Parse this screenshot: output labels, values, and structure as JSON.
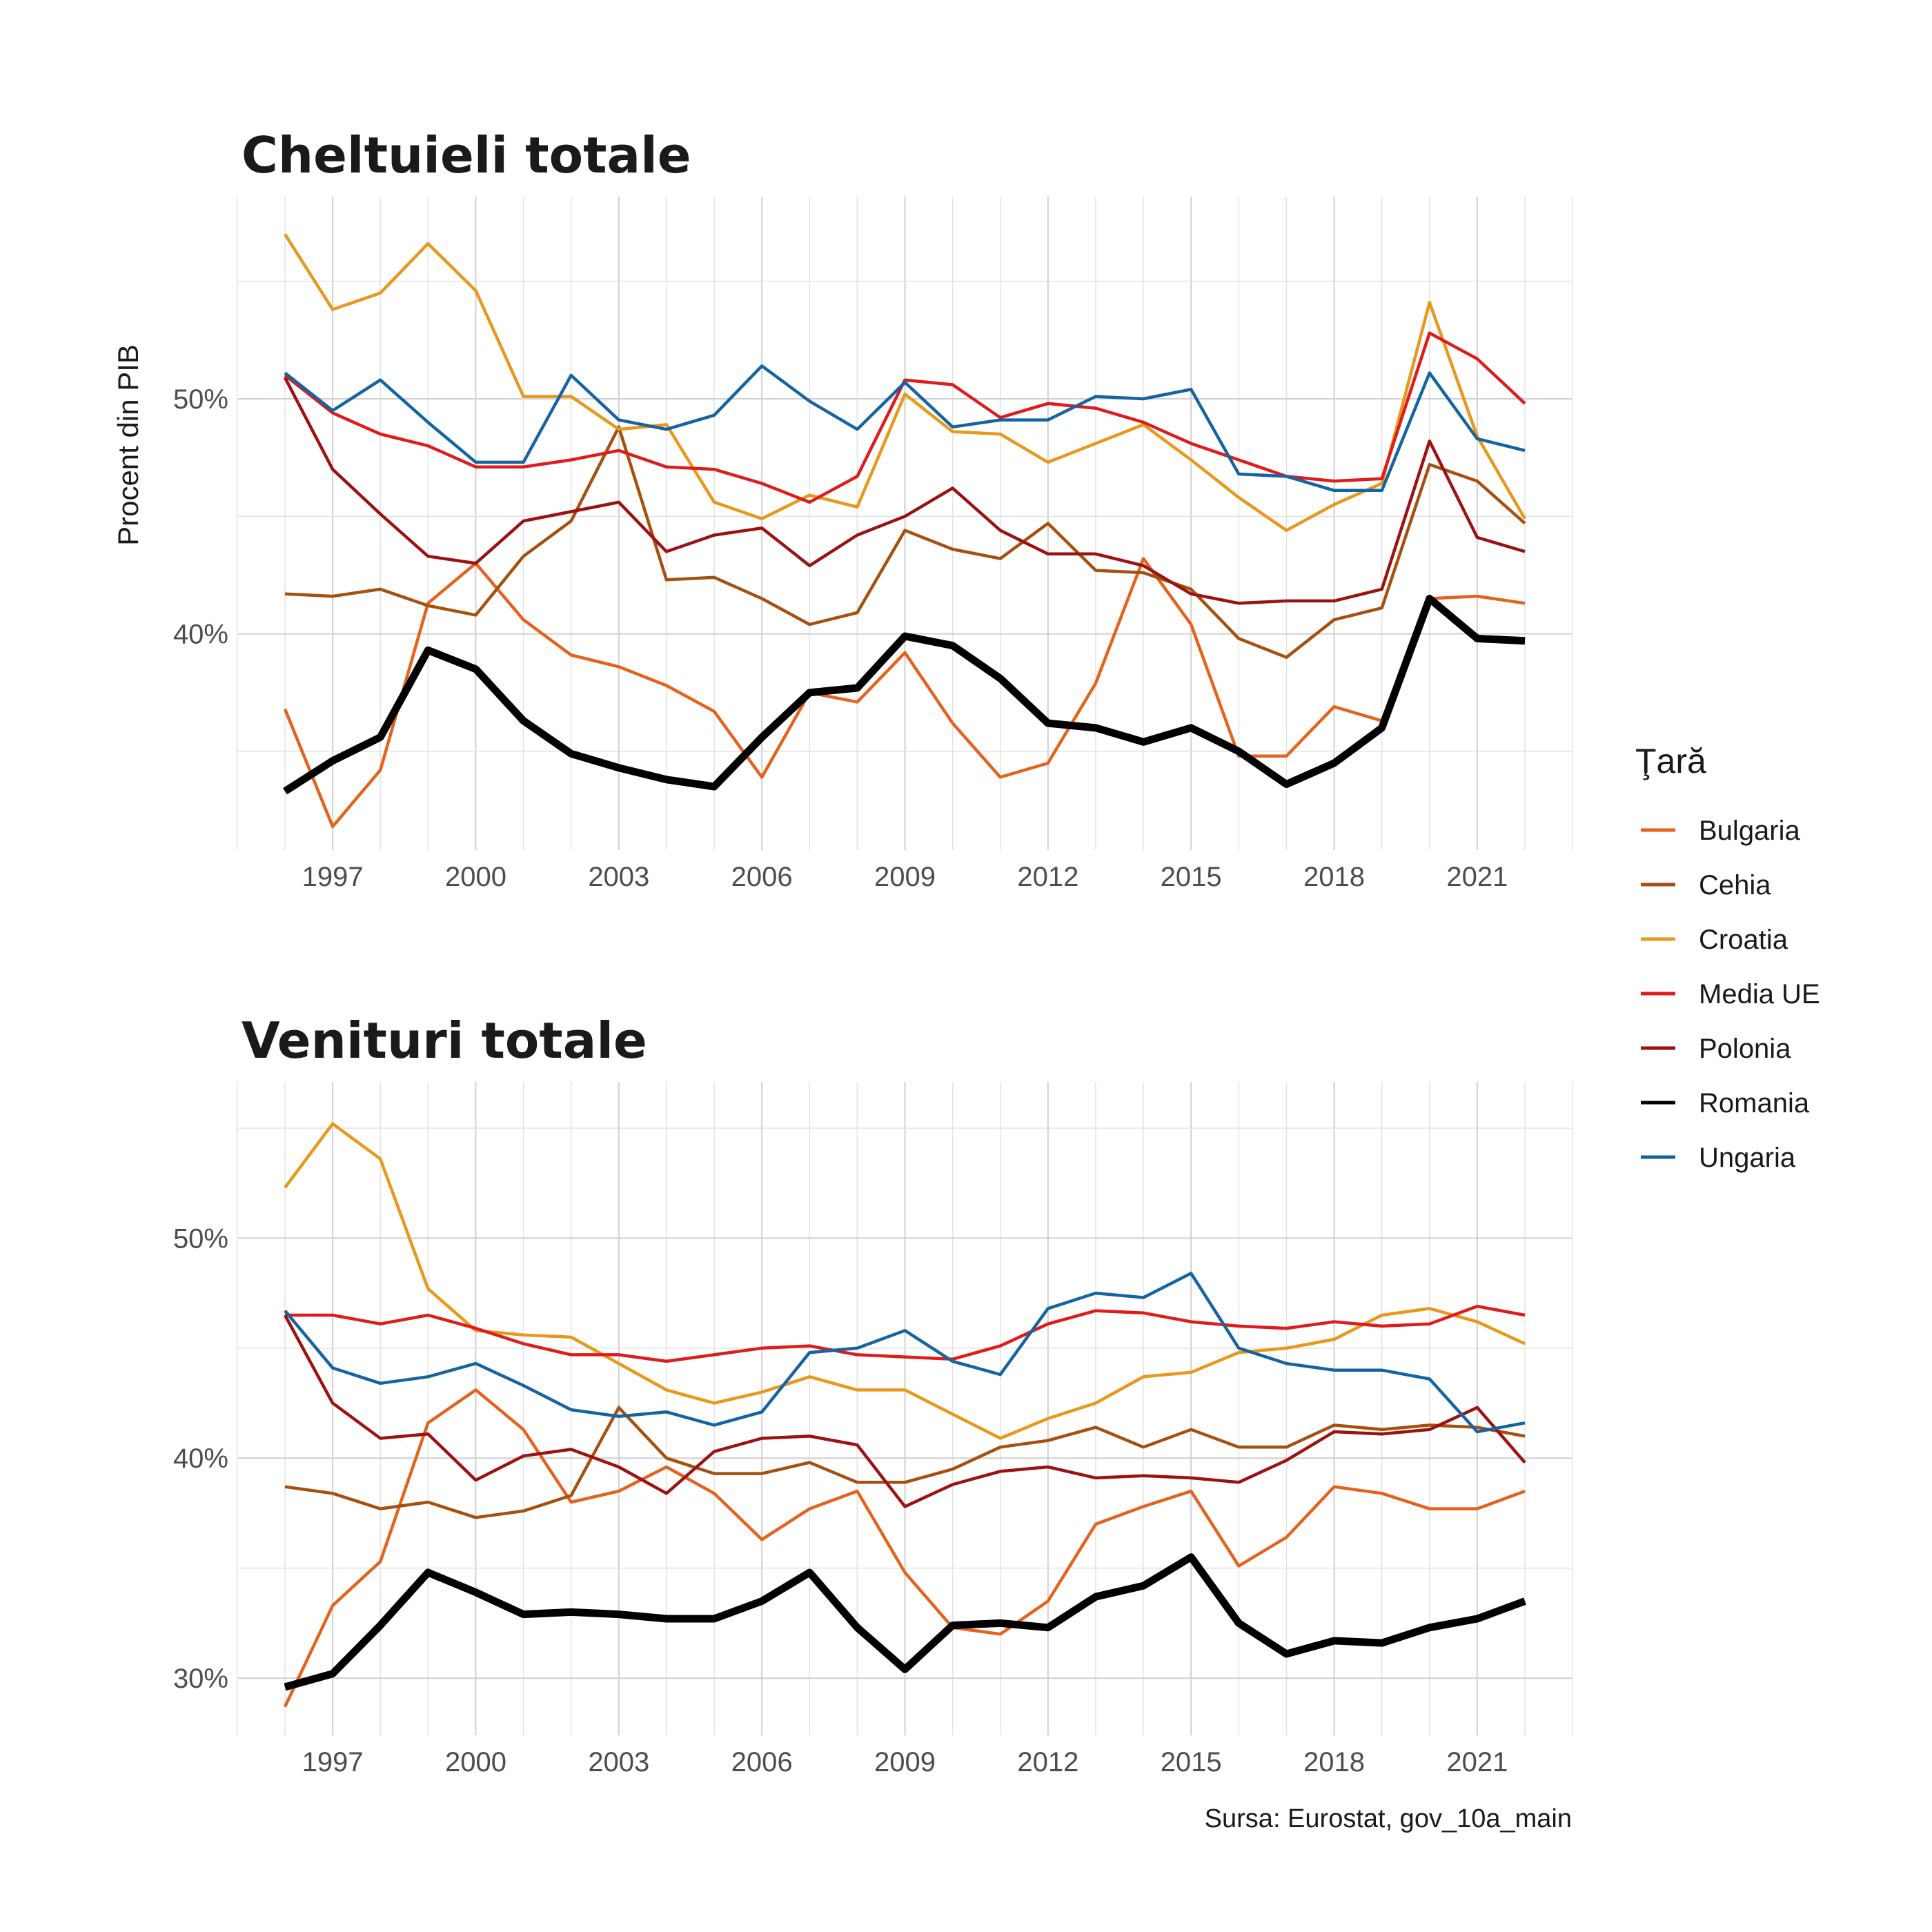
{
  "caption": "Sursa: Eurostat, gov_10a_main",
  "legend": {
    "title": "Ţară"
  },
  "chart_data": {
    "type": "line",
    "x": [
      1996,
      1997,
      1998,
      1999,
      2000,
      2001,
      2002,
      2003,
      2004,
      2005,
      2006,
      2007,
      2008,
      2009,
      2010,
      2011,
      2012,
      2013,
      2014,
      2015,
      2016,
      2017,
      2018,
      2019,
      2020,
      2021,
      2022
    ],
    "x_ticks": [
      "1997",
      "2000",
      "2003",
      "2006",
      "2009",
      "2012",
      "2015",
      "2018",
      "2021"
    ],
    "ylabel": "Procent din PIB",
    "grid": true,
    "legend_position": "right",
    "series_styles": [
      {
        "name": "Bulgaria",
        "color": "#e5621d"
      },
      {
        "name": "Cehia",
        "color": "#a6500f"
      },
      {
        "name": "Croatia",
        "color": "#e8981a"
      },
      {
        "name": "Media UE",
        "color": "#e01b1b"
      },
      {
        "name": "Polonia",
        "color": "#9c1111"
      },
      {
        "name": "Romania",
        "color": "#000000"
      },
      {
        "name": "Ungaria",
        "color": "#1463a3"
      }
    ],
    "panels": [
      {
        "title": "Cheltuieli totale",
        "yticks": [
          "40%",
          "50%"
        ],
        "ylim": [
          30.8,
          58.6
        ],
        "series": [
          {
            "name": "Bulgaria",
            "values": [
              36.8,
              31.8,
              34.2,
              41.3,
              43.0,
              40.6,
              39.1,
              38.6,
              37.8,
              36.7,
              33.9,
              37.5,
              37.1,
              39.2,
              36.2,
              33.9,
              34.5,
              37.9,
              43.2,
              40.4,
              34.8,
              34.8,
              36.9,
              36.3,
              41.5,
              41.6,
              41.3
            ]
          },
          {
            "name": "Cehia",
            "values": [
              41.7,
              41.6,
              41.9,
              41.2,
              40.8,
              43.3,
              44.8,
              48.8,
              42.3,
              42.4,
              41.5,
              40.4,
              40.9,
              44.4,
              43.6,
              43.2,
              44.7,
              42.7,
              42.6,
              41.9,
              39.8,
              39.0,
              40.6,
              41.1,
              47.2,
              46.5,
              44.7
            ]
          },
          {
            "name": "Croatia",
            "values": [
              57.0,
              53.8,
              54.5,
              56.6,
              54.6,
              50.1,
              50.1,
              48.7,
              48.9,
              45.6,
              44.9,
              45.9,
              45.4,
              50.2,
              48.6,
              48.5,
              47.3,
              48.1,
              48.9,
              47.4,
              45.8,
              44.4,
              45.5,
              46.4,
              54.1,
              48.4,
              44.9
            ]
          },
          {
            "name": "Media UE",
            "values": [
              51.0,
              49.4,
              48.5,
              48.0,
              47.1,
              47.1,
              47.4,
              47.8,
              47.1,
              47.0,
              46.4,
              45.6,
              46.7,
              50.8,
              50.6,
              49.2,
              49.8,
              49.6,
              49.0,
              48.1,
              47.4,
              46.7,
              46.5,
              46.6,
              52.8,
              51.7,
              49.8
            ]
          },
          {
            "name": "Polonia",
            "values": [
              50.9,
              47.0,
              45.1,
              43.3,
              43.0,
              44.8,
              45.2,
              45.6,
              43.5,
              44.2,
              44.5,
              42.9,
              44.2,
              45.0,
              46.2,
              44.4,
              43.4,
              43.4,
              42.9,
              41.7,
              41.3,
              41.4,
              41.4,
              41.9,
              48.2,
              44.1,
              43.5
            ]
          },
          {
            "name": "Romania",
            "values": [
              33.3,
              34.6,
              35.6,
              39.3,
              38.5,
              36.3,
              34.9,
              34.3,
              33.8,
              33.5,
              35.6,
              37.5,
              37.7,
              39.9,
              39.5,
              38.1,
              36.2,
              36.0,
              35.4,
              36.0,
              35.0,
              33.6,
              34.5,
              36.0,
              41.5,
              39.8,
              39.7
            ]
          },
          {
            "name": "Ungaria",
            "values": [
              51.1,
              49.5,
              50.8,
              49.0,
              47.3,
              47.3,
              51.0,
              49.1,
              48.7,
              49.3,
              51.4,
              49.9,
              48.7,
              50.7,
              48.8,
              49.1,
              49.1,
              50.1,
              50.0,
              50.4,
              46.8,
              46.7,
              46.1,
              46.1,
              51.1,
              48.3,
              47.8
            ]
          }
        ]
      },
      {
        "title": "Venituri totale",
        "yticks": [
          "30%",
          "40%",
          "50%"
        ],
        "ylim": [
          27.4,
          57.1
        ],
        "series": [
          {
            "name": "Bulgaria",
            "values": [
              28.7,
              33.3,
              35.3,
              41.6,
              43.1,
              41.3,
              38.0,
              38.5,
              39.6,
              38.4,
              36.3,
              37.7,
              38.5,
              34.8,
              32.3,
              32.0,
              33.5,
              37.0,
              37.8,
              38.5,
              35.1,
              36.4,
              38.7,
              38.4,
              37.7,
              37.7,
              38.5
            ]
          },
          {
            "name": "Cehia",
            "values": [
              38.7,
              38.4,
              37.7,
              38.0,
              37.3,
              37.6,
              38.3,
              42.3,
              40.0,
              39.3,
              39.3,
              39.8,
              38.9,
              38.9,
              39.5,
              40.5,
              40.8,
              41.4,
              40.5,
              41.3,
              40.5,
              40.5,
              41.5,
              41.3,
              41.5,
              41.4,
              41.0
            ]
          },
          {
            "name": "Croatia",
            "values": [
              52.3,
              55.2,
              53.6,
              47.7,
              45.8,
              45.6,
              45.5,
              44.3,
              43.1,
              42.5,
              43.0,
              43.7,
              43.1,
              43.1,
              42.0,
              40.9,
              41.8,
              42.5,
              43.7,
              43.9,
              44.8,
              45.0,
              45.4,
              46.5,
              46.8,
              46.2,
              45.2
            ]
          },
          {
            "name": "Media UE",
            "values": [
              46.5,
              46.5,
              46.1,
              46.5,
              45.9,
              45.2,
              44.7,
              44.7,
              44.4,
              44.7,
              45.0,
              45.1,
              44.7,
              44.6,
              44.5,
              45.1,
              46.1,
              46.7,
              46.6,
              46.2,
              46.0,
              45.9,
              46.2,
              46.0,
              46.1,
              46.9,
              46.5
            ]
          },
          {
            "name": "Polonia",
            "values": [
              46.5,
              42.5,
              40.9,
              41.1,
              39.0,
              40.1,
              40.4,
              39.6,
              38.4,
              40.3,
              40.9,
              41.0,
              40.6,
              37.8,
              38.8,
              39.4,
              39.6,
              39.1,
              39.2,
              39.1,
              38.9,
              39.9,
              41.2,
              41.1,
              41.3,
              42.3,
              39.8
            ]
          },
          {
            "name": "Romania",
            "values": [
              29.6,
              30.2,
              32.4,
              34.8,
              33.9,
              32.9,
              33.0,
              32.9,
              32.7,
              32.7,
              33.5,
              34.8,
              32.3,
              30.4,
              32.4,
              32.5,
              32.3,
              33.7,
              34.2,
              35.5,
              32.5,
              31.1,
              31.7,
              31.6,
              32.3,
              32.7,
              33.5
            ]
          },
          {
            "name": "Ungaria",
            "values": [
              46.7,
              44.1,
              43.4,
              43.7,
              44.3,
              43.3,
              42.2,
              41.9,
              42.1,
              41.5,
              42.1,
              44.8,
              45.0,
              45.8,
              44.4,
              43.8,
              46.8,
              47.5,
              47.3,
              48.4,
              45.0,
              44.3,
              44.0,
              44.0,
              43.6,
              41.2,
              41.6
            ]
          }
        ]
      }
    ]
  }
}
